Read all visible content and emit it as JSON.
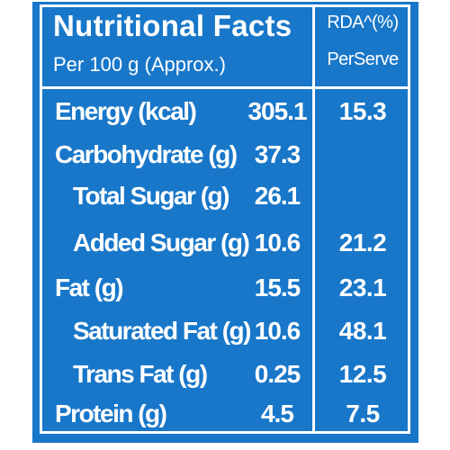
{
  "header": {
    "title": "Nutritional Facts",
    "subtitle": "Per 100 g (Approx.)",
    "rda_title": "RDA^(%)",
    "rda_subtitle": "PerServe"
  },
  "rows": [
    {
      "label": "Energy (kcal)",
      "value": "305.1",
      "rda": "15.3",
      "indent": false
    },
    {
      "label": "Carbohydrate (g)",
      "value": "37.3",
      "rda": "",
      "indent": false
    },
    {
      "label": "Total Sugar (g)",
      "value": "26.1",
      "rda": "",
      "indent": true
    },
    {
      "label": "Added Sugar (g)",
      "value": "10.6",
      "rda": "21.2",
      "indent": true
    },
    {
      "label": "Fat (g)",
      "value": "15.5",
      "rda": "23.1",
      "indent": false
    },
    {
      "label": "Saturated Fat (g)",
      "value": "10.6",
      "rda": "48.1",
      "indent": true
    },
    {
      "label": "Trans Fat (g)",
      "value": "0.25",
      "rda": "12.5",
      "indent": true
    },
    {
      "label": "Protein (g)",
      "value": "4.5",
      "rda": "7.5",
      "indent": false
    }
  ],
  "colors": {
    "background": "#1877c9",
    "text": "#ffffff"
  }
}
